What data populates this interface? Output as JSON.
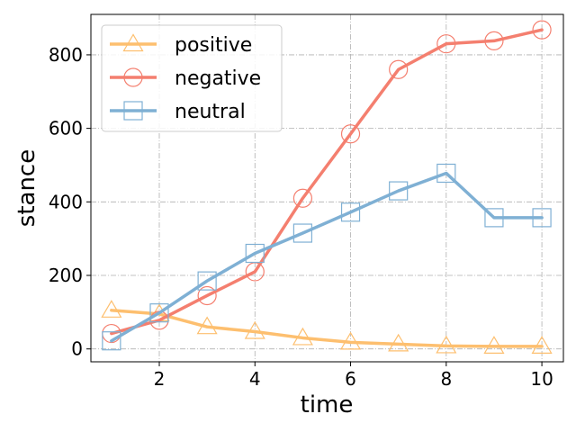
{
  "chart_data": {
    "type": "line",
    "title": "",
    "xlabel": "time",
    "ylabel": "stance",
    "x": [
      1,
      2,
      3,
      4,
      5,
      6,
      7,
      8,
      9,
      10
    ],
    "xlim": [
      0.57,
      10.45
    ],
    "ylim": [
      -35,
      910
    ],
    "xticks": [
      2,
      4,
      6,
      8,
      10
    ],
    "yticks": [
      0,
      200,
      400,
      600,
      800
    ],
    "grid": true,
    "legend_position": "top-left",
    "series": [
      {
        "name": "positive",
        "color": "#fdbf6f",
        "marker": "triangle",
        "values": [
          105,
          95,
          60,
          47,
          30,
          18,
          13,
          8,
          7,
          7
        ]
      },
      {
        "name": "negative",
        "color": "#f47f6f",
        "marker": "circle",
        "values": [
          42,
          78,
          145,
          210,
          410,
          585,
          760,
          830,
          838,
          868
        ]
      },
      {
        "name": "neutral",
        "color": "#7fb0d4",
        "marker": "square",
        "values": [
          22,
          98,
          185,
          260,
          315,
          372,
          430,
          478,
          357,
          357
        ]
      }
    ]
  }
}
